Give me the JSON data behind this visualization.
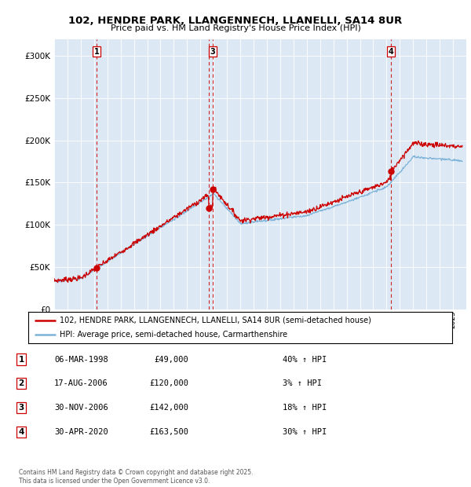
{
  "title": "102, HENDRE PARK, LLANGENNECH, LLANELLI, SA14 8UR",
  "subtitle": "Price paid vs. HM Land Registry's House Price Index (HPI)",
  "ylim": [
    0,
    320000
  ],
  "yticks": [
    0,
    50000,
    100000,
    150000,
    200000,
    250000,
    300000
  ],
  "ytick_labels": [
    "£0",
    "£50K",
    "£100K",
    "£150K",
    "£200K",
    "£250K",
    "£300K"
  ],
  "bg_color": "#dce9f5",
  "red_color": "#cc0000",
  "blue_color": "#7eb3d8",
  "sale_points": [
    {
      "label": "1",
      "date_num": 1998.18,
      "price": 49000,
      "show_box_top": true
    },
    {
      "label": "2",
      "date_num": 2006.63,
      "price": 120000,
      "show_box_top": false
    },
    {
      "label": "3",
      "date_num": 2006.92,
      "price": 142000,
      "show_box_top": true
    },
    {
      "label": "4",
      "date_num": 2020.33,
      "price": 163500,
      "show_box_top": true
    }
  ],
  "legend_entries": [
    "102, HENDRE PARK, LLANGENNECH, LLANELLI, SA14 8UR (semi-detached house)",
    "HPI: Average price, semi-detached house, Carmarthenshire"
  ],
  "table_rows": [
    [
      "1",
      "06-MAR-1998",
      "£49,000",
      "40% ↑ HPI"
    ],
    [
      "2",
      "17-AUG-2006",
      "£120,000",
      "3% ↑ HPI"
    ],
    [
      "3",
      "30-NOV-2006",
      "£142,000",
      "18% ↑ HPI"
    ],
    [
      "4",
      "30-APR-2020",
      "£163,500",
      "30% ↑ HPI"
    ]
  ],
  "footer": "Contains HM Land Registry data © Crown copyright and database right 2025.\nThis data is licensed under the Open Government Licence v3.0.",
  "xmin": 1995,
  "xmax": 2026
}
